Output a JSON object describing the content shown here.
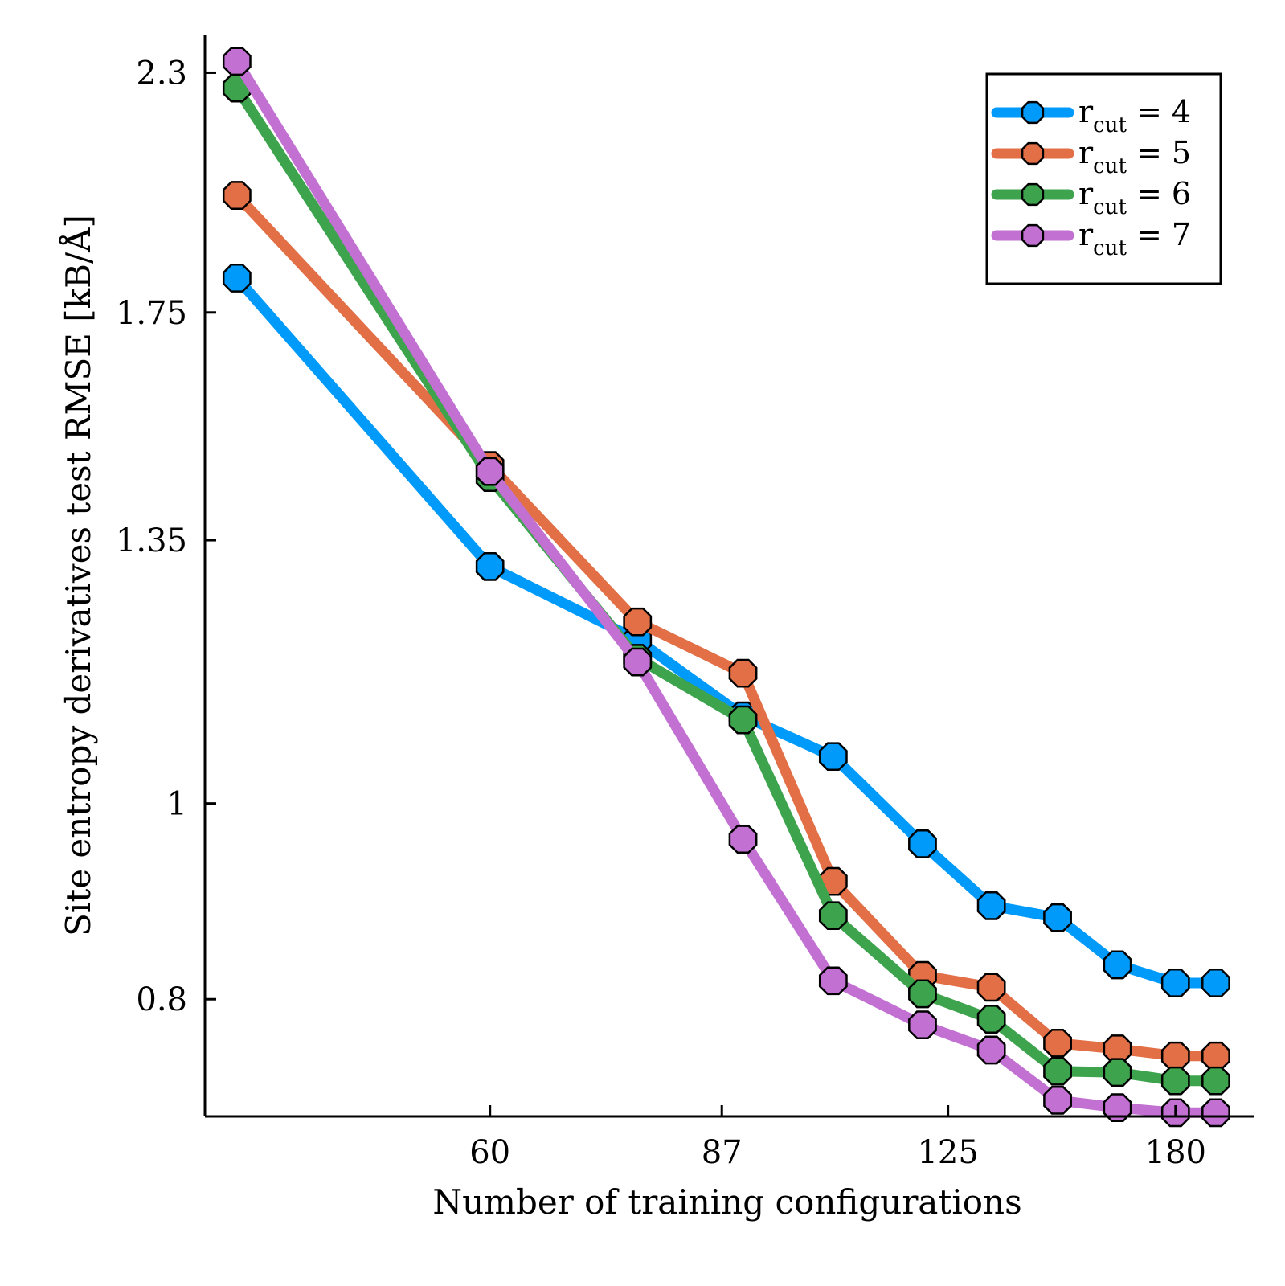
{
  "chart_data": {
    "type": "line",
    "title": "",
    "xlabel": "Number of training configurations",
    "ylabel": "Site entropy derivatives test RMSE [kB/Å]",
    "x_scale": "log",
    "y_scale": "log",
    "x": [
      40,
      60,
      76,
      90,
      104,
      120,
      134,
      149,
      164,
      180,
      192
    ],
    "xlim": [
      38,
      204
    ],
    "ylim": [
      0.7,
      2.4
    ],
    "xticks": [
      60,
      87,
      125,
      180
    ],
    "xtick_labels": [
      "60",
      "87",
      "125",
      "180"
    ],
    "yticks": [
      0.8,
      1,
      1.35,
      1.75,
      2.3
    ],
    "ytick_labels": [
      "0.8",
      "1",
      "1.35",
      "1.75",
      "2.3"
    ],
    "grid": false,
    "legend_position": "top-right",
    "series": [
      {
        "name": "r_cut = 4",
        "label_main": "r",
        "label_sub": "cut",
        "label_value": "= 4",
        "color": "#009AFA",
        "values": [
          1.82,
          1.31,
          1.205,
          1.105,
          1.055,
          0.955,
          0.89,
          0.878,
          0.832,
          0.815,
          0.815
        ]
      },
      {
        "name": "r_cut = 5",
        "label_main": "r",
        "label_sub": "cut",
        "label_value": "= 5",
        "color": "#E26F46",
        "values": [
          2.0,
          1.47,
          1.23,
          1.16,
          0.915,
          0.822,
          0.811,
          0.761,
          0.756,
          0.75,
          0.75
        ]
      },
      {
        "name": "r_cut = 6",
        "label_main": "r",
        "label_sub": "cut",
        "label_value": "= 6",
        "color": "#3DA44D",
        "values": [
          2.26,
          1.45,
          1.18,
          1.1,
          0.88,
          0.805,
          0.782,
          0.737,
          0.736,
          0.729,
          0.729
        ]
      },
      {
        "name": "r_cut = 7",
        "label_main": "r",
        "label_sub": "cut",
        "label_value": "= 7",
        "color": "#C271D2",
        "values": [
          2.33,
          1.46,
          1.175,
          0.96,
          0.817,
          0.777,
          0.755,
          0.713,
          0.707,
          0.703,
          0.703
        ]
      }
    ]
  }
}
